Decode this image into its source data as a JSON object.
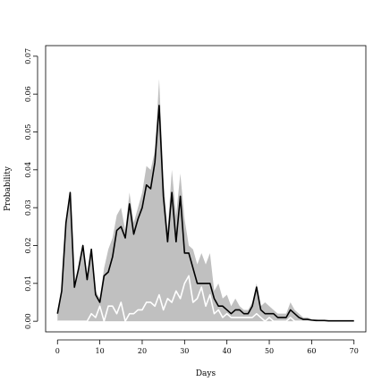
{
  "chart_data": {
    "type": "area",
    "title": "",
    "xlabel": "Days",
    "ylabel": "Probability",
    "xlim": [
      -2.8,
      72.8
    ],
    "ylim": [
      -0.0028,
      0.0728
    ],
    "x_ticks": [
      0,
      10,
      20,
      30,
      40,
      50,
      60,
      70
    ],
    "x_tick_labels": [
      "0",
      "10",
      "20",
      "30",
      "40",
      "50",
      "60",
      "70"
    ],
    "y_ticks": [
      0.0,
      0.01,
      0.02,
      0.03,
      0.04,
      0.05,
      0.06,
      0.07
    ],
    "y_tick_labels": [
      "0.00",
      "0.01",
      "0.02",
      "0.03",
      "0.04",
      "0.05",
      "0.06",
      "0.07"
    ],
    "grid": false,
    "legend": "none",
    "colors": {
      "band": "#c0c0c0",
      "line": "#000000",
      "lower_line": "#ffffff",
      "frame": "#000000"
    },
    "x": [
      0,
      1,
      2,
      3,
      4,
      5,
      6,
      7,
      8,
      9,
      10,
      11,
      12,
      13,
      14,
      15,
      16,
      17,
      18,
      19,
      20,
      21,
      22,
      23,
      24,
      25,
      26,
      27,
      28,
      29,
      30,
      31,
      32,
      33,
      34,
      35,
      36,
      37,
      38,
      39,
      40,
      41,
      42,
      43,
      44,
      45,
      46,
      47,
      48,
      49,
      50,
      51,
      52,
      53,
      54,
      55,
      56,
      57,
      58,
      59,
      60,
      61,
      62,
      63,
      64,
      65,
      66,
      67,
      68,
      69,
      70
    ],
    "series": [
      {
        "role": "band-upper",
        "values": [
          0.002,
          0.008,
          0.026,
          0.034,
          0.009,
          0.014,
          0.02,
          0.011,
          0.019,
          0.008,
          0.006,
          0.014,
          0.019,
          0.022,
          0.028,
          0.03,
          0.024,
          0.034,
          0.026,
          0.03,
          0.034,
          0.041,
          0.04,
          0.045,
          0.064,
          0.038,
          0.024,
          0.04,
          0.028,
          0.039,
          0.027,
          0.02,
          0.019,
          0.015,
          0.018,
          0.015,
          0.018,
          0.008,
          0.01,
          0.006,
          0.007,
          0.004,
          0.006,
          0.004,
          0.003,
          0.003,
          0.005,
          0.01,
          0.004,
          0.005,
          0.004,
          0.003,
          0.002,
          0.002,
          0.002,
          0.005,
          0.003,
          0.002,
          0.001,
          0.001,
          0.0005,
          0.0005,
          0.0003,
          0.0002,
          0.0002,
          0.0001,
          0.0001,
          0.0001,
          0.0001,
          0.0001,
          0.0001
        ]
      },
      {
        "role": "band-lower",
        "values": [
          0.0,
          0.0,
          0.0,
          0.0,
          0.0,
          0.0,
          0.0,
          0.0,
          0.0,
          0.0,
          0.0,
          0.0,
          0.0,
          0.0,
          0.0,
          0.0,
          0.0,
          0.0,
          0.0,
          0.0,
          0.0,
          0.0,
          0.0,
          0.0,
          0.0,
          0.0,
          0.0,
          0.0,
          0.0,
          0.0,
          0.0,
          0.0,
          0.0,
          0.0,
          0.0,
          0.0,
          0.0,
          0.0,
          0.0,
          0.0,
          0.0,
          0.0,
          0.0,
          0.0,
          0.0,
          0.0,
          0.0,
          0.0,
          0.0,
          0.0,
          0.0,
          0.0,
          0.0,
          0.0,
          0.0,
          0.0,
          0.0,
          0.0,
          0.0,
          0.0,
          0.0,
          0.0,
          0.0,
          0.0,
          0.0,
          0.0,
          0.0,
          0.0,
          0.0,
          0.0,
          0.0
        ]
      },
      {
        "role": "black-line",
        "values": [
          0.002,
          0.008,
          0.026,
          0.034,
          0.009,
          0.014,
          0.02,
          0.011,
          0.019,
          0.007,
          0.005,
          0.012,
          0.013,
          0.017,
          0.024,
          0.025,
          0.022,
          0.031,
          0.023,
          0.027,
          0.03,
          0.036,
          0.035,
          0.042,
          0.057,
          0.033,
          0.021,
          0.034,
          0.021,
          0.033,
          0.018,
          0.018,
          0.014,
          0.01,
          0.01,
          0.01,
          0.01,
          0.006,
          0.004,
          0.004,
          0.003,
          0.002,
          0.003,
          0.003,
          0.002,
          0.002,
          0.004,
          0.009,
          0.003,
          0.002,
          0.002,
          0.002,
          0.001,
          0.001,
          0.001,
          0.003,
          0.002,
          0.001,
          0.0005,
          0.0005,
          0.0003,
          0.0002,
          0.0002,
          0.0002,
          0.0001,
          0.0001,
          0.0001,
          0.0001,
          0.0001,
          0.0001,
          0.0001
        ]
      },
      {
        "role": "white-line",
        "values": [
          0.0,
          0.0,
          0.0,
          0.0,
          0.0,
          0.0,
          0.0,
          0.0,
          0.002,
          0.001,
          0.004,
          0.0,
          0.004,
          0.004,
          0.002,
          0.005,
          0.0,
          0.002,
          0.002,
          0.003,
          0.003,
          0.005,
          0.005,
          0.004,
          0.007,
          0.003,
          0.006,
          0.005,
          0.008,
          0.006,
          0.01,
          0.012,
          0.005,
          0.006,
          0.009,
          0.004,
          0.007,
          0.002,
          0.003,
          0.001,
          0.002,
          0.001,
          0.001,
          0.001,
          0.001,
          0.001,
          0.001,
          0.002,
          0.001,
          0.0,
          0.001,
          0.0,
          0.0,
          0.0,
          0.0,
          0.001,
          0.0,
          0.0,
          0.0,
          0.0,
          0.0,
          0.0,
          0.0,
          0.0,
          0.0,
          0.0,
          0.0,
          0.0,
          0.0,
          0.0,
          0.0
        ]
      }
    ]
  }
}
